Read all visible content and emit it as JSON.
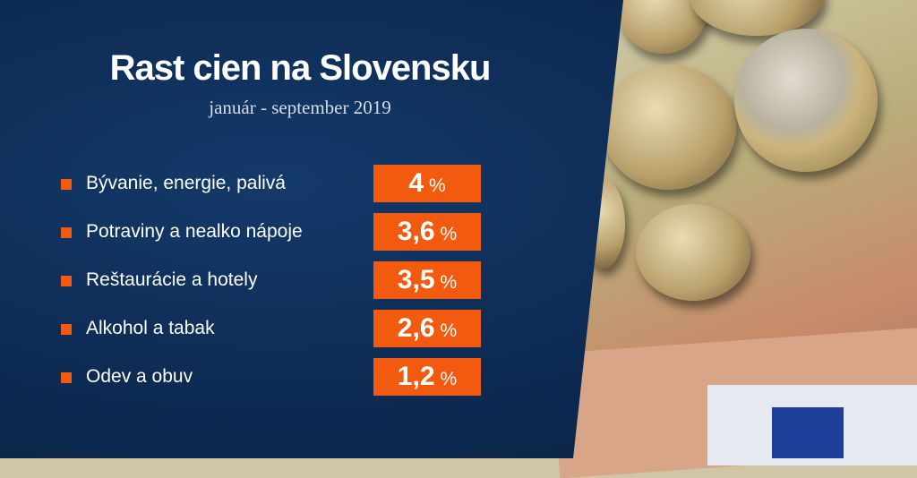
{
  "title": "Rast cien na Slovensku",
  "subtitle": "január - september 2019",
  "colors": {
    "background": "#0d2a52",
    "accent": "#f25a10",
    "text": "#ffffff"
  },
  "chart_data": {
    "type": "table",
    "title": "Rast cien na Slovensku",
    "subtitle": "január - september 2019",
    "unit": "%",
    "rows": [
      {
        "category": "Bývanie, energie, palivá",
        "value": "4",
        "unit": "%"
      },
      {
        "category": "Potraviny a nealko nápoje",
        "value": "3,6",
        "unit": "%"
      },
      {
        "category": "Reštaurácie a hotely",
        "value": "3,5",
        "unit": "%"
      },
      {
        "category": "Alkohol a tabak",
        "value": "2,6",
        "unit": "%"
      },
      {
        "category": "Odev a obuv",
        "value": "1,2",
        "unit": "%"
      }
    ]
  }
}
